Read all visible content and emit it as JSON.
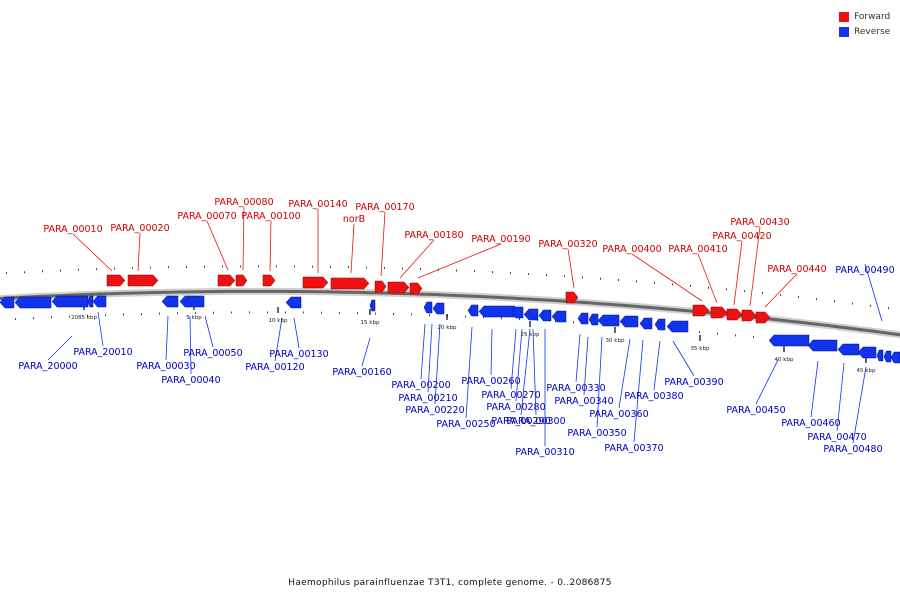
{
  "colors": {
    "forward": "#ee1111",
    "reverse": "#1133ee",
    "backbone": "#666666"
  },
  "legend": [
    {
      "label": "Forward",
      "color": "#ee1111"
    },
    {
      "label": "Reverse",
      "color": "#1133ee"
    }
  ],
  "caption": "Haemophilus parainfluenzae T3T1, complete genome. - 0..2086875",
  "scale_labels": [
    "2085 kbp",
    "5 kbp",
    "10 kbp",
    "15 kbp",
    "20 kbp",
    "25 kbp",
    "30 kbp",
    "35 kbp",
    "40 kbp",
    "45 kbp"
  ],
  "forward_genes": [
    "PARA_00010",
    "PARA_00020",
    "PARA_00070",
    "PARA_00080",
    "PARA_00100",
    "PARA_00140",
    "norB",
    "PARA_00170",
    "PARA_00180",
    "PARA_00190",
    "PARA_00320",
    "PARA_00400",
    "PARA_00410",
    "PARA_00420",
    "PARA_00430",
    "PARA_00440"
  ],
  "reverse_genes": [
    "PARA_20000",
    "PARA_20010",
    "PARA_00030",
    "PARA_00040",
    "PARA_00050",
    "PARA_00120",
    "PARA_00130",
    "PARA_00160",
    "PARA_00200",
    "PARA_00210",
    "PARA_00220",
    "PARA_00250",
    "PARA_00260",
    "PARA_00270",
    "PARA_00280",
    "PARA_00290",
    "PARA_00300",
    "PARA_00310",
    "PARA_00330",
    "PARA_00340",
    "PARA_00350",
    "PARA_00360",
    "PARA_00370",
    "PARA_00380",
    "PARA_00390",
    "PARA_00450",
    "PARA_00460",
    "PARA_00470",
    "PARA_00480",
    "PARA_00490"
  ]
}
